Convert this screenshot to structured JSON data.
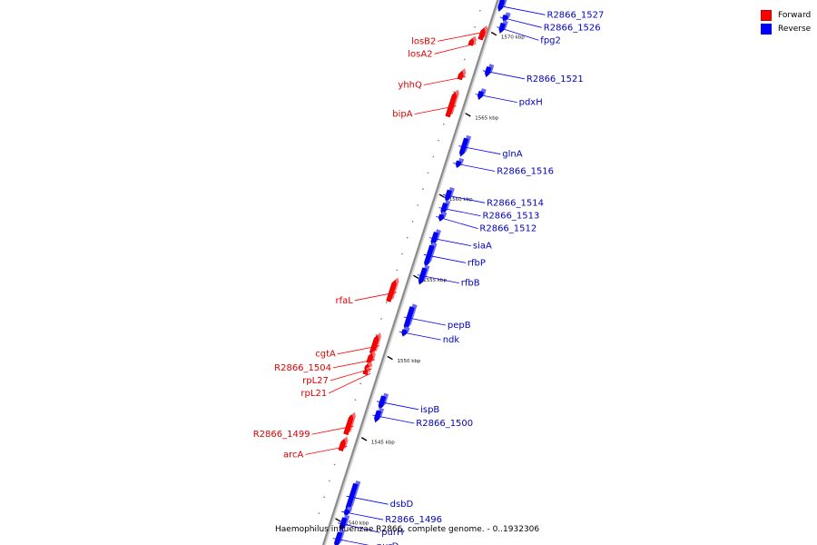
{
  "legend": {
    "forward": {
      "label": "Forward",
      "color": "#ff0000"
    },
    "reverse": {
      "label": "Reverse",
      "color": "#0000ff"
    }
  },
  "caption": "Haemophilus influenzae R2866, complete genome. - 0..1932306",
  "axis": {
    "start_kbp": 1538.3,
    "end_kbp": 1572.2,
    "tick_kbp": [
      1540,
      1545,
      1550,
      1555,
      1560,
      1565,
      1570
    ]
  },
  "tick_labels": [
    "1540 kbp",
    "1545 kbp",
    "1550 kbp",
    "1555 kbp",
    "1560 kbp",
    "1565 kbp",
    "1570 kbp"
  ],
  "genes": [
    {
      "name": "R2866_1527",
      "strand": "reverse",
      "start_kbp": 1571.3,
      "end_kbp": 1572.0
    },
    {
      "name": "R2866_1526",
      "strand": "reverse",
      "start_kbp": 1570.8,
      "end_kbp": 1571.2
    },
    {
      "name": "fpg2",
      "strand": "reverse",
      "start_kbp": 1570.1,
      "end_kbp": 1570.7
    },
    {
      "name": "losB2",
      "strand": "forward",
      "start_kbp": 1569.4,
      "end_kbp": 1570.1
    },
    {
      "name": "losA2",
      "strand": "forward",
      "start_kbp": 1568.9,
      "end_kbp": 1569.3
    },
    {
      "name": "R2866_1521",
      "strand": "reverse",
      "start_kbp": 1567.4,
      "end_kbp": 1568.0
    },
    {
      "name": "yhhQ",
      "strand": "forward",
      "start_kbp": 1566.8,
      "end_kbp": 1567.3
    },
    {
      "name": "pdxH",
      "strand": "reverse",
      "start_kbp": 1566.0,
      "end_kbp": 1566.5
    },
    {
      "name": "bipA",
      "strand": "forward",
      "start_kbp": 1564.5,
      "end_kbp": 1566.0
    },
    {
      "name": "glnA",
      "strand": "reverse",
      "start_kbp": 1562.5,
      "end_kbp": 1563.6
    },
    {
      "name": "R2866_1516",
      "strand": "reverse",
      "start_kbp": 1561.8,
      "end_kbp": 1562.2
    },
    {
      "name": "R2866_1514",
      "strand": "reverse",
      "start_kbp": 1559.7,
      "end_kbp": 1560.4
    },
    {
      "name": "R2866_1513",
      "strand": "reverse",
      "start_kbp": 1558.9,
      "end_kbp": 1559.6
    },
    {
      "name": "R2866_1512",
      "strand": "reverse",
      "start_kbp": 1558.5,
      "end_kbp": 1558.9
    },
    {
      "name": "siaA",
      "strand": "reverse",
      "start_kbp": 1557.0,
      "end_kbp": 1557.8
    },
    {
      "name": "rfbP",
      "strand": "reverse",
      "start_kbp": 1555.7,
      "end_kbp": 1557.0
    },
    {
      "name": "rfbB",
      "strand": "reverse",
      "start_kbp": 1554.6,
      "end_kbp": 1555.6
    },
    {
      "name": "rfaL",
      "strand": "forward",
      "start_kbp": 1553.1,
      "end_kbp": 1554.4
    },
    {
      "name": "pepB",
      "strand": "reverse",
      "start_kbp": 1551.8,
      "end_kbp": 1553.2
    },
    {
      "name": "ndk",
      "strand": "reverse",
      "start_kbp": 1551.4,
      "end_kbp": 1551.8
    },
    {
      "name": "cgtA",
      "strand": "forward",
      "start_kbp": 1549.9,
      "end_kbp": 1551.0
    },
    {
      "name": "R2866_1504",
      "strand": "forward",
      "start_kbp": 1549.3,
      "end_kbp": 1549.9
    },
    {
      "name": "rpL27",
      "strand": "forward",
      "start_kbp": 1548.9,
      "end_kbp": 1549.2
    },
    {
      "name": "rpL21",
      "strand": "forward",
      "start_kbp": 1548.6,
      "end_kbp": 1548.9
    },
    {
      "name": "ispB",
      "strand": "reverse",
      "start_kbp": 1546.9,
      "end_kbp": 1547.7
    },
    {
      "name": "R2866_1500",
      "strand": "reverse",
      "start_kbp": 1546.1,
      "end_kbp": 1546.8
    },
    {
      "name": "R2866_1499",
      "strand": "forward",
      "start_kbp": 1544.9,
      "end_kbp": 1546.1
    },
    {
      "name": "arcA",
      "strand": "forward",
      "start_kbp": 1543.9,
      "end_kbp": 1544.6
    },
    {
      "name": "dsbD",
      "strand": "reverse",
      "start_kbp": 1540.6,
      "end_kbp": 1542.3
    },
    {
      "name": "R2866_1496",
      "strand": "reverse",
      "start_kbp": 1540.3,
      "end_kbp": 1540.7
    },
    {
      "name": "purH",
      "strand": "reverse",
      "start_kbp": 1539.4,
      "end_kbp": 1540.2
    },
    {
      "name": "purD",
      "strand": "reverse",
      "start_kbp": 1538.4,
      "end_kbp": 1539.3
    }
  ]
}
